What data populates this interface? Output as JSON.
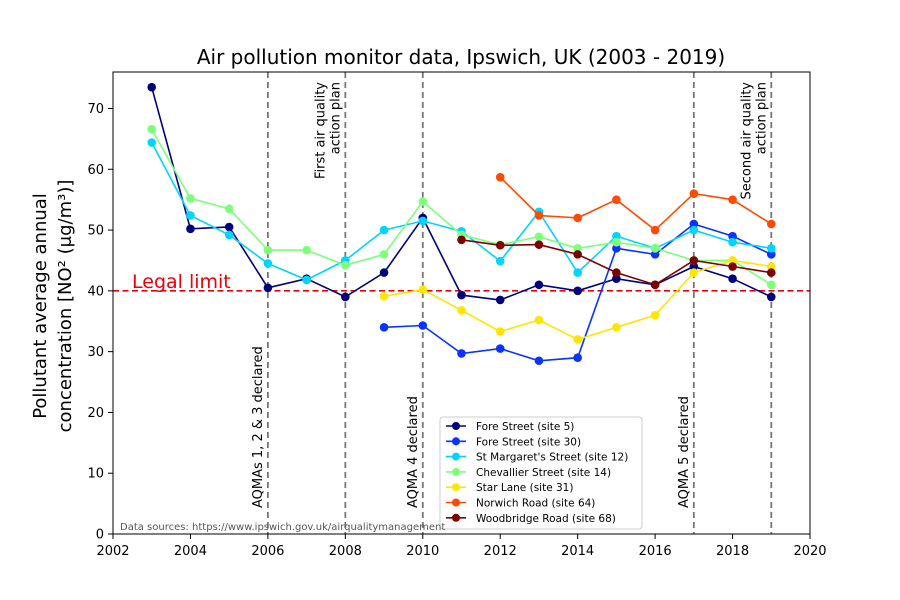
{
  "chart_data": {
    "type": "line",
    "title": "Air pollution monitor data, Ipswich, UK (2003 - 2019)",
    "ylabel_line1": "Pollutant average annual",
    "ylabel_line2": "concentration [NO² (μg/m³)]",
    "xlim": [
      2002,
      2020
    ],
    "ylim": [
      0,
      76
    ],
    "xticks": [
      2002,
      2004,
      2006,
      2008,
      2010,
      2012,
      2014,
      2016,
      2018,
      2020
    ],
    "yticks": [
      0,
      10,
      20,
      30,
      40,
      50,
      60,
      70
    ],
    "grid": false,
    "legend_position": "lower-center",
    "legal_limit": {
      "label": "Legal limit",
      "value": 40,
      "color": "#e8000b"
    },
    "events": [
      {
        "x": 2006,
        "label_lines": [
          "AQMAs 1, 2 & 3 declared"
        ],
        "label_position": "bottom"
      },
      {
        "x": 2008,
        "label_lines": [
          "First air quality",
          "action plan"
        ],
        "label_position": "top"
      },
      {
        "x": 2010,
        "label_lines": [
          "AQMA 4 declared"
        ],
        "label_position": "bottom"
      },
      {
        "x": 2017,
        "label_lines": [
          "AQMA 5 declared"
        ],
        "label_position": "bottom"
      },
      {
        "x": 2019,
        "label_lines": [
          "Second air quality",
          "action plan"
        ],
        "label_position": "top"
      }
    ],
    "series": [
      {
        "name": "Fore Street (site 5)",
        "color": "#00007f",
        "points": [
          [
            2003,
            73.5
          ],
          [
            2004,
            50.2
          ],
          [
            2005,
            50.5
          ],
          [
            2006,
            40.5
          ],
          [
            2007,
            42
          ],
          [
            2008,
            39
          ],
          [
            2009,
            43
          ],
          [
            2010,
            52
          ],
          [
            2011,
            39.3
          ],
          [
            2012,
            38.5
          ],
          [
            2013,
            41
          ],
          [
            2014,
            40
          ],
          [
            2015,
            42
          ],
          [
            2016,
            41
          ],
          [
            2017,
            44
          ],
          [
            2018,
            42
          ],
          [
            2019,
            39
          ]
        ]
      },
      {
        "name": "Fore Street (site 30)",
        "color": "#0a33ff",
        "points": [
          [
            2009,
            34
          ],
          [
            2010,
            34.3
          ],
          [
            2011,
            29.7
          ],
          [
            2012,
            30.5
          ],
          [
            2013,
            28.5
          ],
          [
            2014,
            29
          ],
          [
            2015,
            47
          ],
          [
            2016,
            46
          ],
          [
            2017,
            51
          ],
          [
            2018,
            49
          ],
          [
            2019,
            46
          ]
        ]
      },
      {
        "name": "St Margaret's Street (site 12)",
        "color": "#00d4ff",
        "points": [
          [
            2003,
            64.4
          ],
          [
            2004,
            52.4
          ],
          [
            2005,
            49.2
          ],
          [
            2006,
            44.5
          ],
          [
            2007,
            41.8
          ],
          [
            2008,
            45
          ],
          [
            2009,
            50
          ],
          [
            2010,
            51.5
          ],
          [
            2011,
            49.8
          ],
          [
            2012,
            44.9
          ],
          [
            2013,
            53
          ],
          [
            2014,
            43
          ],
          [
            2015,
            49
          ],
          [
            2016,
            47
          ],
          [
            2017,
            50
          ],
          [
            2018,
            48
          ],
          [
            2019,
            47
          ]
        ]
      },
      {
        "name": "Chevallier Street (site 14)",
        "color": "#7dff7a",
        "points": [
          [
            2003,
            66.6
          ],
          [
            2004,
            55.2
          ],
          [
            2005,
            53.5
          ],
          [
            2006,
            46.7
          ],
          [
            2007,
            46.7
          ],
          [
            2008,
            44.2
          ],
          [
            2009,
            46
          ],
          [
            2010,
            54.7
          ],
          [
            2011,
            49.2
          ],
          [
            2012,
            47.6
          ],
          [
            2013,
            48.9
          ],
          [
            2014,
            47
          ],
          [
            2015,
            48
          ],
          [
            2016,
            47
          ],
          [
            2017,
            45
          ],
          [
            2018,
            45
          ],
          [
            2019,
            41
          ]
        ]
      },
      {
        "name": "Star Lane (site 31)",
        "color": "#ffe600",
        "points": [
          [
            2009,
            39.1
          ],
          [
            2010,
            40.2
          ],
          [
            2011,
            36.8
          ],
          [
            2012,
            33.3
          ],
          [
            2013,
            35.2
          ],
          [
            2014,
            32
          ],
          [
            2015,
            34
          ],
          [
            2016,
            36
          ],
          [
            2017,
            43
          ],
          [
            2018,
            45
          ],
          [
            2019,
            44
          ]
        ]
      },
      {
        "name": "Norwich Road (site 64)",
        "color": "#ff4a00",
        "points": [
          [
            2012,
            58.7
          ],
          [
            2013,
            52.4
          ],
          [
            2014,
            52
          ],
          [
            2015,
            55
          ],
          [
            2016,
            50
          ],
          [
            2017,
            56
          ],
          [
            2018,
            55
          ],
          [
            2019,
            51
          ]
        ]
      },
      {
        "name": "Woodbridge Road (site 68)",
        "color": "#7f0000",
        "points": [
          [
            2011,
            48.4
          ],
          [
            2012,
            47.5
          ],
          [
            2013,
            47.6
          ],
          [
            2014,
            46
          ],
          [
            2015,
            43
          ],
          [
            2016,
            41
          ],
          [
            2017,
            45
          ],
          [
            2018,
            44
          ],
          [
            2019,
            43
          ]
        ]
      }
    ],
    "source_note": "Data sources: https://www.ipswich.gov.uk/airqualitymanagement"
  }
}
